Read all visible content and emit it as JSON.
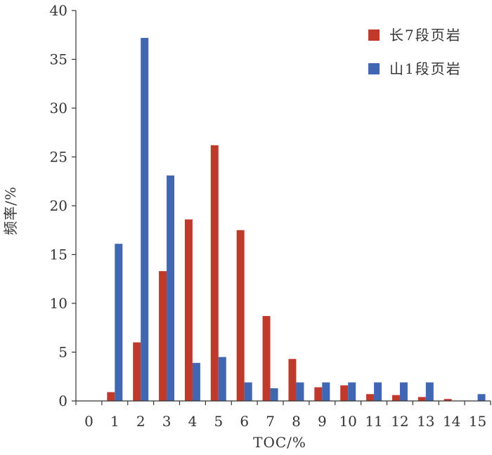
{
  "chart_data": {
    "type": "bar",
    "title": "",
    "xlabel": "TOC/%",
    "ylabel": "频率/%",
    "ylim": [
      0,
      40
    ],
    "yticks": [
      "0",
      "5",
      "10",
      "15",
      "20",
      "25",
      "30",
      "35",
      "40"
    ],
    "categories": [
      "0",
      "1",
      "2",
      "3",
      "4",
      "5",
      "6",
      "7",
      "8",
      "9",
      "10",
      "11",
      "12",
      "13",
      "14",
      "15"
    ],
    "legend_position": "top-right",
    "grid": false,
    "series": [
      {
        "name": "长7段页岩",
        "color": "#c0392b",
        "values": [
          0,
          0.9,
          6.0,
          13.3,
          18.6,
          26.2,
          17.5,
          8.7,
          4.3,
          1.4,
          1.6,
          0.7,
          0.6,
          0.4,
          0.2,
          0
        ]
      },
      {
        "name": "山1段页岩",
        "color": "#4267b2",
        "values": [
          0,
          16.1,
          37.2,
          23.1,
          3.9,
          4.5,
          1.9,
          1.3,
          1.9,
          1.9,
          1.9,
          1.9,
          1.9,
          1.9,
          0,
          0.7
        ]
      }
    ]
  }
}
